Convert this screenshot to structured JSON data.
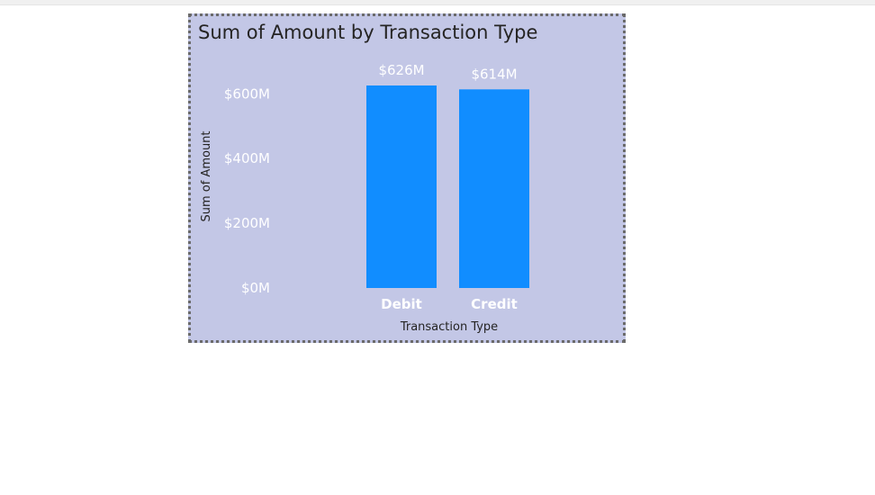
{
  "chart_data": {
    "type": "bar",
    "title": "Sum of Amount by Transaction Type",
    "xlabel": "Transaction Type",
    "ylabel": "Sum of Amount",
    "categories": [
      "Debit",
      "Credit"
    ],
    "values": [
      626,
      614
    ],
    "data_labels": [
      "$626M",
      "$614M"
    ],
    "y_ticks": [
      0,
      200,
      400,
      600
    ],
    "y_tick_labels": [
      "$0M",
      "$200M",
      "$400M",
      "$600M"
    ],
    "ylim": [
      0,
      626
    ],
    "grid": false,
    "legend": "none",
    "colors": {
      "bar": "#118dff",
      "background": "#c3c7e6"
    }
  }
}
